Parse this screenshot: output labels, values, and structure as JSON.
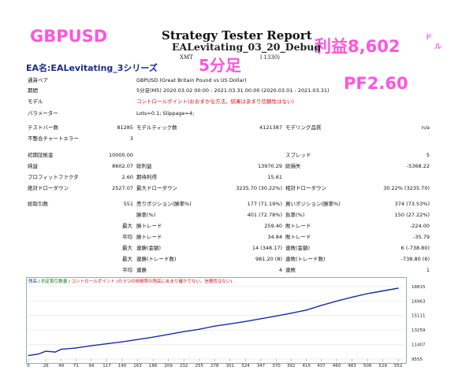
{
  "overlay": {
    "pair": "GBPUSD",
    "profit_text": "利益8,602",
    "profit_unit_1": "ド",
    "profit_unit_2": "ル",
    "timeframe": "5分足",
    "pf": "PF2.60",
    "color": "#ff55dd"
  },
  "header": {
    "title": "Strategy Tester Report",
    "ea_file": "EALevitating_03_20_Debug",
    "sub": "XMT",
    "sub_end": "l 1330)",
    "ea_name": "EA名:EALevitating_3シリーズ"
  },
  "settings": [
    {
      "label": "通貨ペア",
      "value": "GBPUSD (Great Britain Pound vs US Dollar)"
    },
    {
      "label": "期間",
      "value": "5分足(M5) 2020.03.02 00:00 - 2021.03.31 00:00 (2020.03.01 - 2021.03.31)"
    },
    {
      "label": "モデル",
      "value": "コントロールポイント(おおまかな方法。結果はあまり信頼性はない)",
      "red": true
    },
    {
      "label": "パラメーター",
      "value": "Lots=0.1; Slippage=4;"
    }
  ],
  "stats_top": {
    "bars_label": "テストバー数",
    "bars_value": "81285",
    "ticks_label": "モデルティック数",
    "ticks_value": "4121387",
    "quality_label": "モデリング品質",
    "quality_value": "n/a",
    "mismatch_label": "不整合チャートエラー",
    "mismatch_value": "3"
  },
  "stats_money": {
    "deposit_label": "初期証拠金",
    "deposit_value": "10000.00",
    "spread_label": "スプレッド",
    "spread_value": "5",
    "net_label": "純益",
    "net_value": "8602.07",
    "gross_profit_label": "総利益",
    "gross_profit_value": "13970.29",
    "gross_loss_label": "総損失",
    "gross_loss_value": "-5368.22",
    "pf_label": "プロフィットファクタ",
    "pf_value": "2.60",
    "payoff_label": "期待利得",
    "payoff_value": "15.61",
    "abs_dd_label": "絶対ドローダウン",
    "abs_dd_value": "2527.07",
    "max_dd_label": "最大ドローダウン",
    "max_dd_value": "3235.70 (30.22%)",
    "rel_dd_label": "相対ドローダウン",
    "rel_dd_value": "30.22% (3235.70)"
  },
  "stats_trades": {
    "total_label": "総取引数",
    "total_value": "551",
    "short_label": "売りポジション(勝率%)",
    "short_value": "177 (71.19%)",
    "long_label": "買いポジション(勝率%)",
    "long_value": "374 (73.53%)",
    "win_label": "勝率(%)",
    "win_value": "401 (72.78%)",
    "loss_label": "負率(%)",
    "loss_value": "150 (27.22%)",
    "rows": [
      {
        "head": "最大",
        "l1": "勝トレード",
        "v1": "259.40",
        "l2": "敗トレード",
        "v2": "-224.00"
      },
      {
        "head": "平均",
        "l1": "勝トレード",
        "v1": "34.84",
        "l2": "敗トレード",
        "v2": "-35.79"
      },
      {
        "head": "最大",
        "l1": "連勝(金額)",
        "v1": "14 (348.17)",
        "l2": "連敗(金額)",
        "v2": "6 (-738.80)"
      },
      {
        "head": "最大",
        "l1": "連勝(トレード数)",
        "v1": "981.20 (8)",
        "l2": "連敗(トレード数)",
        "v2": "-738.80 (6)"
      },
      {
        "head": "平均",
        "l1": "連勝",
        "v1": "4",
        "l2": "連敗",
        "v2": "1"
      }
    ]
  },
  "chart_legend": {
    "balance": "残高",
    "sep1": " / ",
    "lots": "約定取引数量",
    "sep2": " / ",
    "model": "コントロールポイント",
    "note": " (の 5つの時間帯の残高にあまり確かでない。信頼性はない)"
  },
  "chart_data": {
    "type": "line",
    "x_ticks": [
      0,
      26,
      49,
      71,
      94,
      117,
      140,
      163,
      186,
      209,
      232,
      255,
      278,
      301,
      324,
      347,
      370,
      392,
      415,
      437,
      460,
      483,
      506,
      529,
      552
    ],
    "y_ticks": [
      9555,
      11407,
      13259,
      15111,
      16963,
      18815
    ],
    "xlim": [
      0,
      560
    ],
    "ylim": [
      9555,
      19000
    ],
    "x": [
      0,
      15,
      26,
      40,
      49,
      70,
      94,
      117,
      140,
      163,
      186,
      209,
      232,
      255,
      278,
      301,
      324,
      347,
      370,
      392,
      415,
      437,
      460,
      483,
      506,
      529,
      552
    ],
    "y": [
      10000,
      10200,
      10550,
      10450,
      10800,
      10950,
      11250,
      11500,
      11750,
      12050,
      12350,
      12700,
      13050,
      13350,
      13750,
      14050,
      14350,
      14700,
      15050,
      15400,
      15800,
      16400,
      16950,
      17450,
      17900,
      18250,
      18602
    ],
    "line_color": "#1a2aa8"
  }
}
